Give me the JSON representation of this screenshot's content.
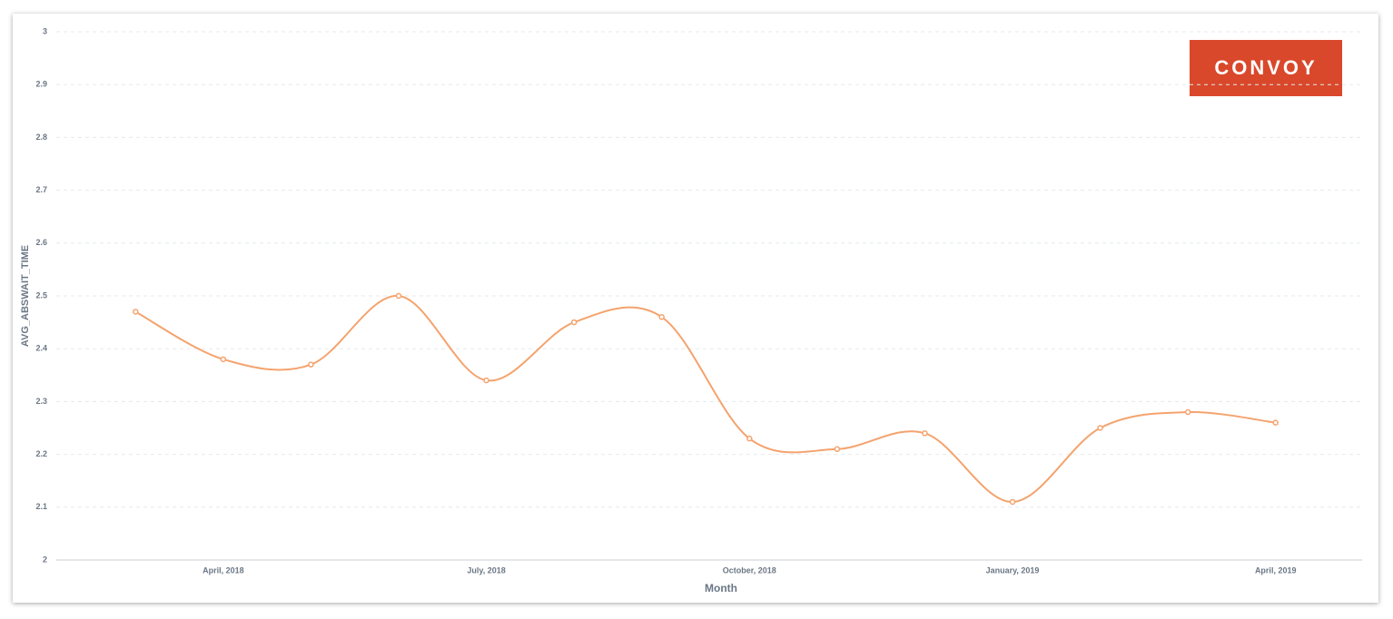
{
  "chart_data": {
    "type": "line",
    "logo": "CONVOY",
    "x_label": "Month",
    "y_label": "AVG_ABSWAIT_TIME",
    "categories": [
      null,
      "April, 2018",
      null,
      null,
      "July, 2018",
      null,
      null,
      "October, 2018",
      null,
      null,
      "January, 2019",
      null,
      null,
      "April, 2019"
    ],
    "values": [
      2.47,
      2.38,
      2.37,
      2.5,
      2.34,
      2.45,
      2.46,
      2.23,
      2.21,
      2.24,
      2.11,
      2.25,
      2.28,
      2.26
    ],
    "color": "#f4a36e",
    "ylim": [
      2,
      3
    ],
    "yticks": [
      2,
      2.1,
      2.2,
      2.3,
      2.4,
      2.5,
      2.6,
      2.7,
      2.8,
      2.9,
      3
    ],
    "grid": true
  }
}
